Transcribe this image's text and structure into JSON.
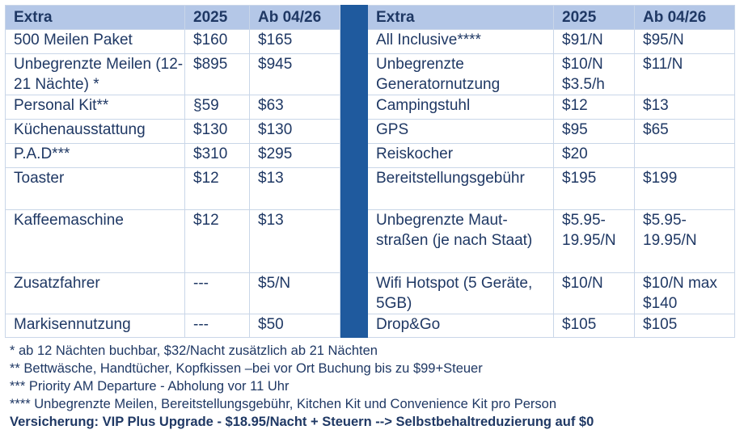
{
  "header": {
    "left": [
      "Extra",
      "2025",
      "Ab 04/26"
    ],
    "right": [
      "Extra",
      "2025",
      "Ab 04/26"
    ]
  },
  "rows": [
    {
      "left": [
        "500 Meilen Paket",
        "$160",
        "$165"
      ],
      "right": [
        "All Inclusive****",
        "$91/N",
        "$95/N"
      ]
    },
    {
      "left": [
        "Unbegrenzte Meilen (12-21 Nächte) *",
        "$895",
        "$945"
      ],
      "right": [
        "Unbegrenzte Generatornutzung",
        "$10/N $3.5/h",
        "$11/N"
      ]
    },
    {
      "left": [
        "Personal Kit**",
        "§59",
        "$63"
      ],
      "right": [
        "Campingstuhl",
        "$12",
        "$13"
      ]
    },
    {
      "left": [
        "Küchenausstattung",
        "$130",
        "$130"
      ],
      "right": [
        "GPS",
        "$95",
        "$65"
      ]
    },
    {
      "left": [
        "P.A.D***",
        "$310",
        "$295"
      ],
      "right": [
        "Reiskocher",
        "$20",
        ""
      ]
    },
    {
      "left": [
        "Toaster",
        "$12",
        "$13"
      ],
      "right": [
        "Bereitstellungsgebühr",
        "$195",
        "$199"
      ]
    },
    {
      "left": [
        "Kaffeemaschine",
        "$12",
        "$13"
      ],
      "right": [
        "Unbegrenzte Maut-straßen (je nach Staat)",
        "$5.95-19.95/N",
        "$5.95-19.95/N"
      ]
    },
    {
      "left": [
        "Zusatzfahrer",
        "---",
        "$5/N"
      ],
      "right": [
        "Wifi Hotspot (5 Geräte, 5GB)",
        "$10/N",
        "$10/N max $140"
      ]
    },
    {
      "left": [
        "Markisennutzung",
        "---",
        "$50"
      ],
      "right": [
        "Drop&Go",
        "$105",
        "$105"
      ]
    }
  ],
  "footnotes": [
    "* ab 12 Nächten buchbar, $32/Nacht zusätzlich ab 21 Nächten",
    "** Bettwäsche, Handtücher, Kopfkissen –bei vor Ort Buchung bis zu $99+Steuer",
    "*** Priority AM Departure - Abholung vor 11 Uhr",
    "**** Unbegrenzte Meilen, Bereitstellungsgebühr, Kitchen Kit und Convenience Kit pro Person"
  ],
  "insurance_note": "Versicherung: VIP Plus Upgrade - $18.95/Nacht + Steuern --> Selbstbehaltreduzierung auf $0",
  "colors": {
    "header_bg": "#b4c7e7",
    "separator": "#1f5a9e",
    "text": "#1f3864"
  }
}
